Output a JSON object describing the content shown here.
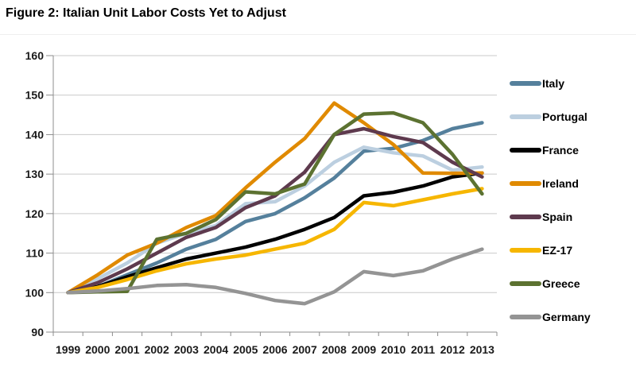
{
  "title": "Figure 2: Italian Unit Labor Costs Yet to Adjust",
  "chart_data": {
    "type": "line",
    "title": "Figure 2: Italian Unit Labor Costs Yet to Adjust",
    "x": [
      "1999",
      "2000",
      "2001",
      "2002",
      "2003",
      "2004",
      "2005",
      "2006",
      "2007",
      "2008",
      "2009",
      "2010",
      "2011",
      "2012",
      "2013"
    ],
    "series": [
      {
        "name": "Italy",
        "color": "#55809c",
        "values": [
          100,
          101.5,
          104.5,
          107.5,
          111,
          113.5,
          118,
          120,
          124,
          129,
          135.8,
          136.5,
          138.5,
          141.5,
          143
        ]
      },
      {
        "name": "Portugal",
        "color": "#bccfe0",
        "values": [
          100,
          103.5,
          107.5,
          112.5,
          115,
          117,
          122.5,
          123,
          127,
          133,
          136.8,
          135.4,
          134.6,
          131,
          131.8
        ]
      },
      {
        "name": "France",
        "color": "#000000",
        "values": [
          100,
          101.5,
          104,
          106.3,
          108.5,
          110,
          111.5,
          113.5,
          116,
          119,
          124.5,
          125.4,
          127,
          129.3,
          130.3
        ]
      },
      {
        "name": "Ireland",
        "color": "#e08a00",
        "values": [
          100,
          104.5,
          109.5,
          112.5,
          116.5,
          119.5,
          126.5,
          133,
          139,
          148,
          143,
          137.5,
          130.3,
          130.2,
          130.3
        ]
      },
      {
        "name": "Spain",
        "color": "#5e3a4e",
        "values": [
          100,
          102.5,
          106,
          110,
          114,
          116.5,
          121.5,
          124.5,
          130.5,
          140,
          141.5,
          139.5,
          138,
          133,
          129.3
        ]
      },
      {
        "name": "EZ-17",
        "color": "#f6b600",
        "values": [
          100,
          101.3,
          103.3,
          105.5,
          107.3,
          108.5,
          109.5,
          111,
          112.5,
          116,
          122.8,
          122,
          123.5,
          125,
          126.3
        ]
      },
      {
        "name": "Greece",
        "color": "#5c7231",
        "values": [
          100,
          100.2,
          100.3,
          113.5,
          115,
          118.5,
          125.5,
          125,
          127.5,
          140,
          145.2,
          145.5,
          143,
          135,
          125
        ]
      },
      {
        "name": "Germany",
        "color": "#949494",
        "values": [
          100,
          100.4,
          101,
          101.8,
          102,
          101.3,
          99.8,
          98,
          97.2,
          100.2,
          105.3,
          104.3,
          105.5,
          108.5,
          111
        ]
      }
    ],
    "ylim": [
      90,
      160
    ],
    "yticks": [
      90,
      100,
      110,
      120,
      130,
      140,
      150,
      160
    ],
    "xlabel": "",
    "ylabel": "",
    "grid": "horizontal",
    "grid_color": "#c9c9c9",
    "axis_color": "#8c8c8c",
    "tick_label_color": "#1a1a1a",
    "legend_position": "right"
  }
}
